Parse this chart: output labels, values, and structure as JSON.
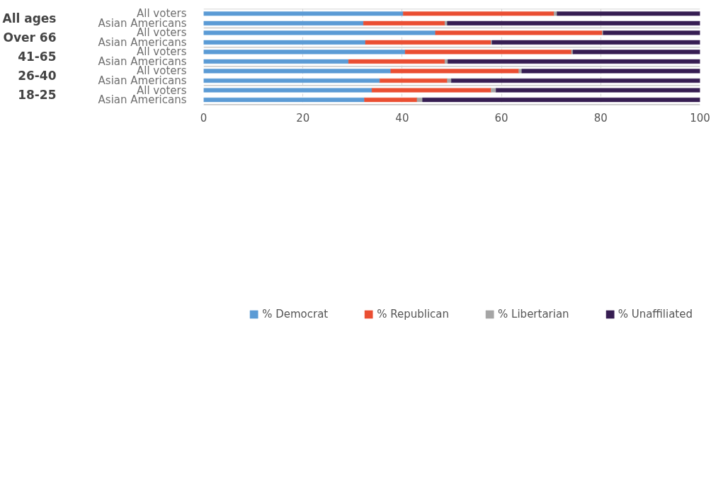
{
  "chart_data": {
    "type": "bar",
    "orientation": "horizontal",
    "stacked": true,
    "categories": [
      "All voters",
      "Asian Americans",
      "All voters",
      "Asian Americans",
      "All voters",
      "Asian Americans",
      "All voters",
      "Asian Americans",
      "All voters",
      "Asian Americans"
    ],
    "annotations": [
      "All ages",
      "Over 66",
      "41-65",
      "26-40",
      "18-25"
    ],
    "series": [
      {
        "name": "% Democrat",
        "color": "#5b9bd5",
        "values": [
          40.2,
          32.2,
          46.7,
          32.6,
          40.6,
          29.2,
          37.7,
          35.5,
          33.9,
          32.4
        ]
      },
      {
        "name": "% Republican",
        "color": "#ea4e32",
        "values": [
          30.4,
          16.4,
          33.6,
          25.3,
          33.5,
          19.4,
          25.8,
          13.6,
          24.0,
          10.6
        ]
      },
      {
        "name": "% Libertarian",
        "color": "#a5a5a5",
        "values": [
          0.6,
          0.5,
          0.2,
          0.2,
          0.3,
          0.6,
          0.6,
          0.8,
          1.0,
          1.1
        ]
      },
      {
        "name": "% Unaffiliated",
        "color": "#361d52",
        "values": [
          28.8,
          50.9,
          19.5,
          41.9,
          25.6,
          50.8,
          35.9,
          50.1,
          41.1,
          55.9
        ]
      }
    ],
    "xlim": [
      0,
      100
    ],
    "xticks": [
      0,
      20,
      40,
      60,
      80,
      100
    ],
    "grid": "x",
    "legend": "bottom"
  }
}
